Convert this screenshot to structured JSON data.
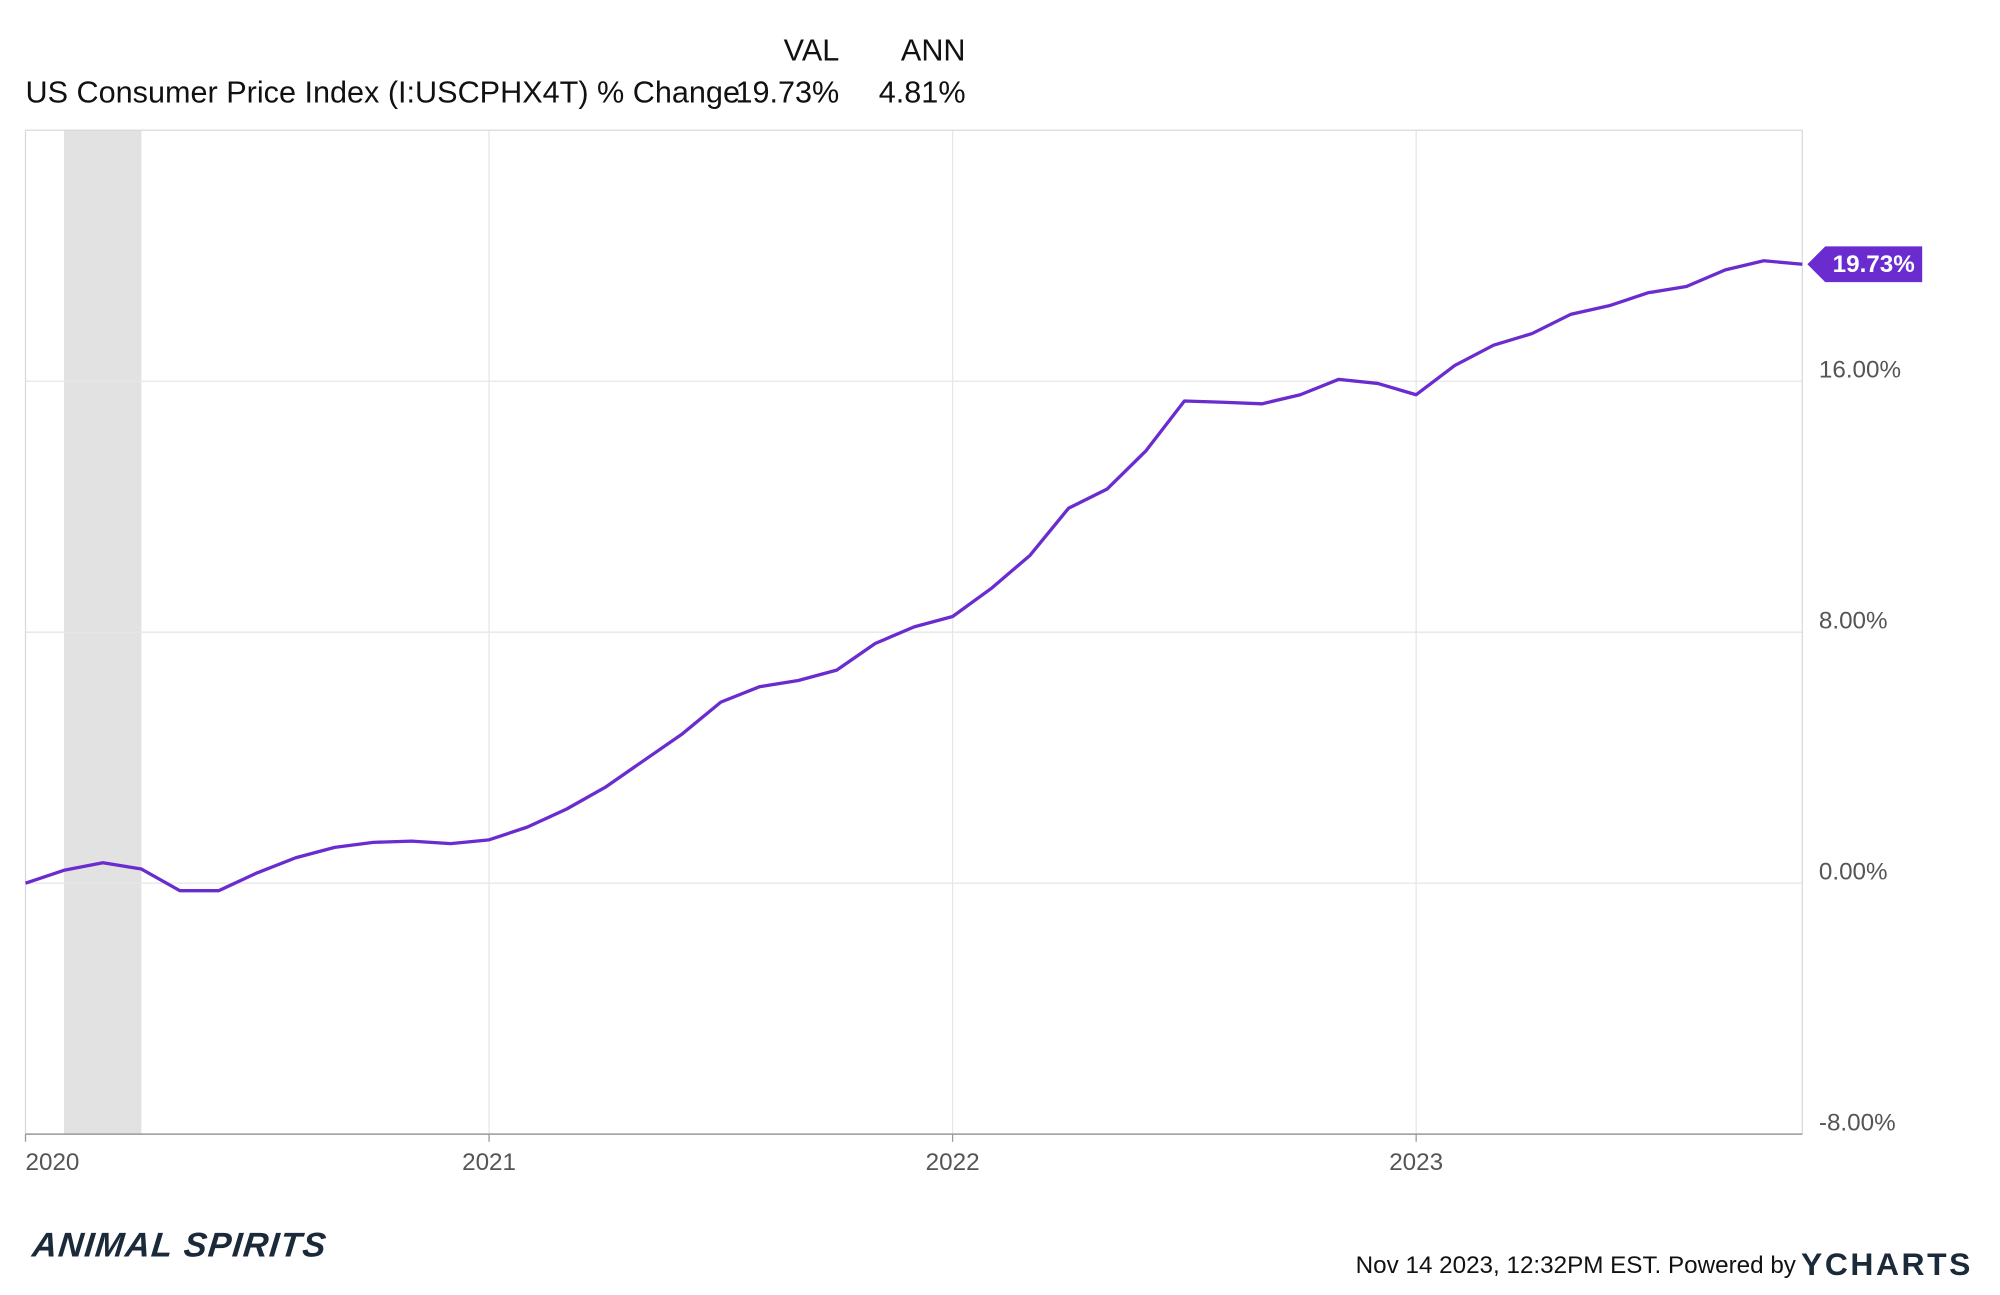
{
  "chart_data": {
    "type": "line",
    "columns": [
      "VAL",
      "ANN"
    ],
    "series": [
      {
        "name": "US Consumer Price Index (I:USCPHX4T) % Change",
        "color": "#6a2ccf",
        "stats": [
          "19.73%",
          "4.81%"
        ],
        "values": [
          0,
          0.41,
          0.65,
          0.45,
          -0.24,
          -0.24,
          0.33,
          0.81,
          1.14,
          1.3,
          1.34,
          1.26,
          1.38,
          1.79,
          2.36,
          3.05,
          3.9,
          4.76,
          5.77,
          6.26,
          6.46,
          6.79,
          7.64,
          8.17,
          8.5,
          9.39,
          10.45,
          11.95,
          12.56,
          13.78,
          15.37,
          15.33,
          15.28,
          15.57,
          16.06,
          15.93,
          15.57,
          16.5,
          17.15,
          17.52,
          18.13,
          18.41,
          18.82,
          19.02,
          19.55,
          19.84,
          19.73
        ],
        "value_labels": [
          null,
          null,
          null,
          null,
          null,
          null,
          null,
          null,
          null,
          null,
          null,
          null,
          null,
          null,
          null,
          null,
          null,
          null,
          null,
          null,
          null,
          null,
          null,
          null,
          null,
          null,
          null,
          null,
          null,
          null,
          null,
          null,
          null,
          null,
          null,
          null,
          null,
          null,
          null,
          null,
          null,
          null,
          null,
          null,
          null,
          null,
          "19.73%"
        ]
      }
    ],
    "x": [
      2020,
      2020.083,
      2020.167,
      2020.25,
      2020.333,
      2020.417,
      2020.5,
      2020.583,
      2020.667,
      2020.75,
      2020.833,
      2020.917,
      2021,
      2021.083,
      2021.167,
      2021.25,
      2021.333,
      2021.417,
      2021.5,
      2021.583,
      2021.667,
      2021.75,
      2021.833,
      2021.917,
      2022,
      2022.083,
      2022.167,
      2022.25,
      2022.333,
      2022.417,
      2022.5,
      2022.583,
      2022.667,
      2022.75,
      2022.833,
      2022.917,
      2023,
      2023.083,
      2023.167,
      2023.25,
      2023.333,
      2023.417,
      2023.5,
      2023.583,
      2023.667,
      2023.75,
      2023.833
    ],
    "xlim": [
      2020,
      2023.833
    ],
    "xticks": [
      2020,
      2021,
      2022,
      2023
    ],
    "ylim": [
      -8,
      24
    ],
    "yticks": [
      {
        "value": -8,
        "label": "-8.00%"
      },
      {
        "value": 0,
        "label": "0.00%"
      },
      {
        "value": 8,
        "label": "8.00%"
      },
      {
        "value": 16,
        "label": "16.00%"
      }
    ],
    "recessions": [
      [
        2020.083,
        2020.25
      ]
    ],
    "grid": true,
    "brand": "ANIMAL SPIRITS",
    "footer": "Nov 14 2023, 12:32PM EST. Powered by",
    "footer_logo": "YCHARTS"
  }
}
